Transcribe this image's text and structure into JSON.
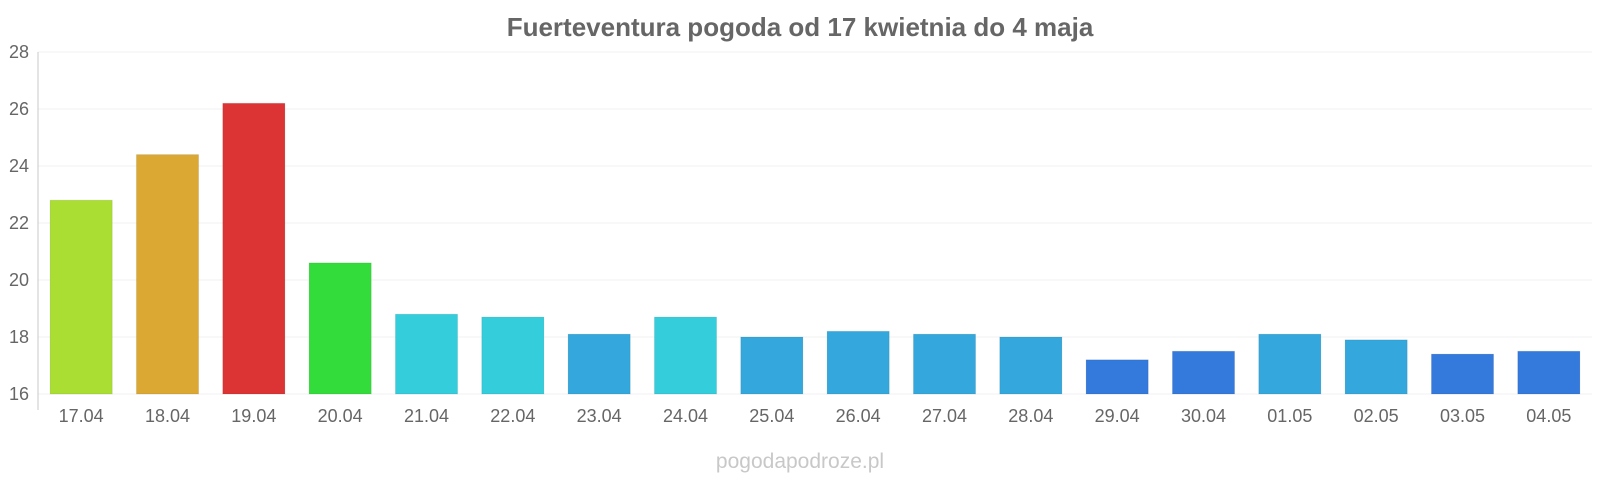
{
  "chart_data": {
    "type": "bar",
    "title": "Fuerteventura pogoda od 17 kwietnia do 4 maja",
    "xlabel": "",
    "ylabel": "",
    "ylim": [
      16,
      28
    ],
    "yticks": [
      16,
      18,
      20,
      22,
      24,
      26,
      28
    ],
    "grid": true,
    "legend": "none",
    "categories": [
      "17.04",
      "18.04",
      "19.04",
      "20.04",
      "21.04",
      "22.04",
      "23.04",
      "24.04",
      "25.04",
      "26.04",
      "27.04",
      "28.04",
      "29.04",
      "30.04",
      "01.05",
      "02.05",
      "03.05",
      "04.05"
    ],
    "values": [
      22.8,
      24.4,
      26.2,
      20.6,
      18.8,
      18.7,
      18.1,
      18.7,
      18.0,
      18.2,
      18.1,
      18.0,
      17.2,
      17.5,
      18.1,
      17.9,
      17.4,
      17.5
    ],
    "colors": [
      "#aade33",
      "#dca834",
      "#dc3434",
      "#34dc3b",
      "#34cddc",
      "#34cddc",
      "#34a8dc",
      "#34cddc",
      "#34a8dc",
      "#34a8dc",
      "#34a8dc",
      "#34a8dc",
      "#3479dc",
      "#3479dc",
      "#34a8dc",
      "#34a8dc",
      "#3479dc",
      "#3479dc"
    ]
  },
  "watermark": "pogodapodroze.pl"
}
